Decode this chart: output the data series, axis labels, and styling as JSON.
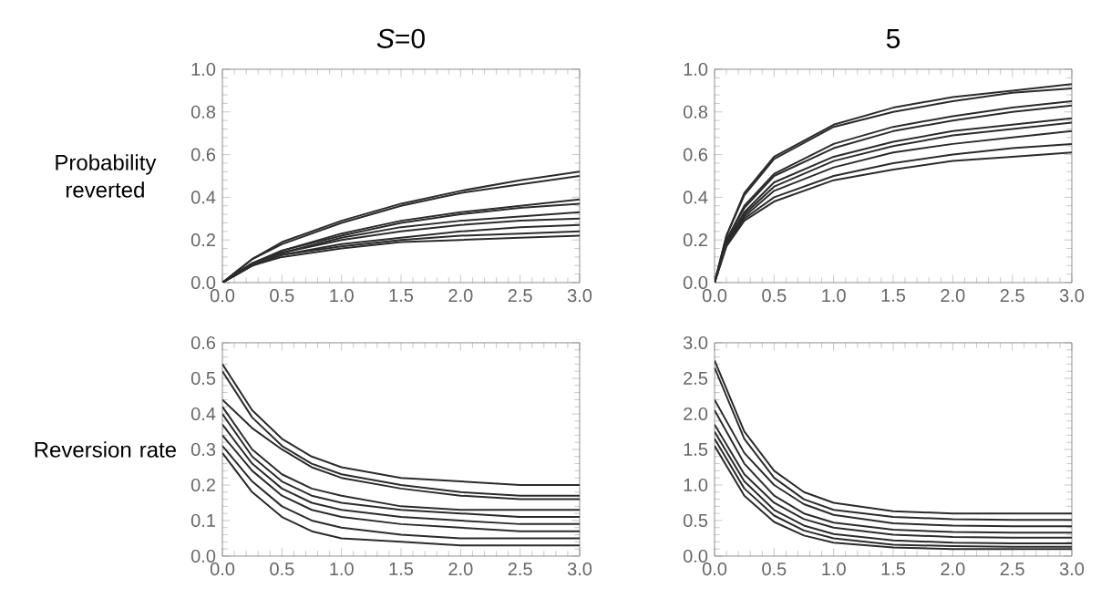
{
  "chart_data": [
    {
      "type": "line",
      "title": "*S*=0",
      "ylabel": "Probability reverted",
      "x": [
        0,
        0.25,
        0.5,
        1,
        1.5,
        2,
        2.5,
        3
      ],
      "xlim": [
        0,
        3
      ],
      "ylim": [
        0,
        1
      ],
      "xticks": [
        {
          "value": 0,
          "label": "0.0"
        },
        {
          "value": 0.5,
          "label": "0.5"
        },
        {
          "value": 1,
          "label": "1.0"
        },
        {
          "value": 1.5,
          "label": "1.5"
        },
        {
          "value": 2,
          "label": "2.0"
        },
        {
          "value": 2.5,
          "label": "2.5"
        },
        {
          "value": 3,
          "label": "3.0"
        }
      ],
      "yticks": [
        {
          "value": 0,
          "label": "0.0"
        },
        {
          "value": 0.2,
          "label": "0.2"
        },
        {
          "value": 0.4,
          "label": "0.4"
        },
        {
          "value": 0.6,
          "label": "0.6"
        },
        {
          "value": 0.8,
          "label": "0.8"
        },
        {
          "value": 1,
          "label": "1.0"
        }
      ],
      "series": [
        {
          "color": "#2b2b2b",
          "values": [
            0,
            0.11,
            0.19,
            0.29,
            0.37,
            0.43,
            0.48,
            0.52
          ]
        },
        {
          "color": "#2b2b2b",
          "values": [
            0,
            0.11,
            0.18,
            0.28,
            0.36,
            0.42,
            0.46,
            0.5
          ]
        },
        {
          "color": "#2b2b2b",
          "values": [
            0,
            0.09,
            0.15,
            0.23,
            0.29,
            0.33,
            0.36,
            0.39
          ]
        },
        {
          "color": "#2b2b2b",
          "values": [
            0,
            0.09,
            0.15,
            0.22,
            0.28,
            0.32,
            0.35,
            0.37
          ]
        },
        {
          "color": "#2b2b2b",
          "values": [
            0,
            0.09,
            0.14,
            0.21,
            0.26,
            0.29,
            0.31,
            0.33
          ]
        },
        {
          "color": "#2b2b2b",
          "values": [
            0,
            0.09,
            0.14,
            0.2,
            0.24,
            0.27,
            0.29,
            0.3
          ]
        },
        {
          "color": "#2b2b2b",
          "values": [
            0,
            0.08,
            0.13,
            0.18,
            0.21,
            0.24,
            0.26,
            0.27
          ]
        },
        {
          "color": "#2b2b2b",
          "values": [
            0,
            0.08,
            0.13,
            0.17,
            0.2,
            0.22,
            0.23,
            0.24
          ]
        },
        {
          "color": "#2b2b2b",
          "values": [
            0,
            0.08,
            0.12,
            0.16,
            0.19,
            0.2,
            0.21,
            0.22
          ]
        }
      ]
    },
    {
      "type": "line",
      "title": "5",
      "x": [
        0,
        0.1,
        0.25,
        0.5,
        1,
        1.5,
        2,
        2.5,
        3
      ],
      "xlim": [
        0,
        3
      ],
      "ylim": [
        0,
        1
      ],
      "xticks": [
        {
          "value": 0,
          "label": "0.0"
        },
        {
          "value": 0.5,
          "label": "0.5"
        },
        {
          "value": 1,
          "label": "1.0"
        },
        {
          "value": 1.5,
          "label": "1.5"
        },
        {
          "value": 2,
          "label": "2.0"
        },
        {
          "value": 2.5,
          "label": "2.5"
        },
        {
          "value": 3,
          "label": "3.0"
        }
      ],
      "yticks": [
        {
          "value": 0,
          "label": "0.0"
        },
        {
          "value": 0.2,
          "label": "0.2"
        },
        {
          "value": 0.4,
          "label": "0.4"
        },
        {
          "value": 0.6,
          "label": "0.6"
        },
        {
          "value": 0.8,
          "label": "0.8"
        },
        {
          "value": 1,
          "label": "1.0"
        }
      ],
      "series": [
        {
          "color": "#2b2b2b",
          "values": [
            0,
            0.22,
            0.42,
            0.59,
            0.74,
            0.82,
            0.87,
            0.9,
            0.93
          ]
        },
        {
          "color": "#2b2b2b",
          "values": [
            0,
            0.22,
            0.41,
            0.58,
            0.73,
            0.8,
            0.85,
            0.89,
            0.91
          ]
        },
        {
          "color": "#2b2b2b",
          "values": [
            0,
            0.2,
            0.36,
            0.51,
            0.65,
            0.73,
            0.78,
            0.82,
            0.85
          ]
        },
        {
          "color": "#2b2b2b",
          "values": [
            0,
            0.2,
            0.35,
            0.5,
            0.63,
            0.71,
            0.76,
            0.8,
            0.83
          ]
        },
        {
          "color": "#2b2b2b",
          "values": [
            0,
            0.19,
            0.33,
            0.47,
            0.59,
            0.66,
            0.71,
            0.74,
            0.77
          ]
        },
        {
          "color": "#2b2b2b",
          "values": [
            0,
            0.19,
            0.32,
            0.45,
            0.57,
            0.64,
            0.69,
            0.72,
            0.75
          ]
        },
        {
          "color": "#2b2b2b",
          "values": [
            0,
            0.18,
            0.31,
            0.43,
            0.54,
            0.61,
            0.65,
            0.68,
            0.71
          ]
        },
        {
          "color": "#2b2b2b",
          "values": [
            0,
            0.18,
            0.3,
            0.4,
            0.5,
            0.56,
            0.6,
            0.63,
            0.65
          ]
        },
        {
          "color": "#2b2b2b",
          "values": [
            0,
            0.17,
            0.29,
            0.38,
            0.48,
            0.53,
            0.57,
            0.59,
            0.61
          ]
        }
      ]
    },
    {
      "type": "line",
      "ylabel": "Reversion rate",
      "x": [
        0,
        0.25,
        0.5,
        0.75,
        1,
        1.5,
        2,
        2.5,
        3
      ],
      "xlim": [
        0,
        3
      ],
      "ylim": [
        0,
        0.6
      ],
      "xticks": [
        {
          "value": 0,
          "label": "0.0"
        },
        {
          "value": 0.5,
          "label": "0.5"
        },
        {
          "value": 1,
          "label": "1.0"
        },
        {
          "value": 1.5,
          "label": "1.5"
        },
        {
          "value": 2,
          "label": "2.0"
        },
        {
          "value": 2.5,
          "label": "2.5"
        },
        {
          "value": 3,
          "label": "3.0"
        }
      ],
      "yticks": [
        {
          "value": 0,
          "label": "0.0"
        },
        {
          "value": 0.1,
          "label": "0.1"
        },
        {
          "value": 0.2,
          "label": "0.2"
        },
        {
          "value": 0.3,
          "label": "0.3"
        },
        {
          "value": 0.4,
          "label": "0.4"
        },
        {
          "value": 0.5,
          "label": "0.5"
        },
        {
          "value": 0.6,
          "label": "0.6"
        }
      ],
      "series": [
        {
          "color": "#2b2b2b",
          "values": [
            0.54,
            0.41,
            0.33,
            0.28,
            0.25,
            0.22,
            0.21,
            0.2,
            0.2
          ]
        },
        {
          "color": "#2b2b2b",
          "values": [
            0.52,
            0.39,
            0.31,
            0.26,
            0.23,
            0.2,
            0.18,
            0.17,
            0.17
          ]
        },
        {
          "color": "#2b2b2b",
          "values": [
            0.44,
            0.36,
            0.3,
            0.25,
            0.22,
            0.19,
            0.17,
            0.16,
            0.16
          ]
        },
        {
          "color": "#2b2b2b",
          "values": [
            0.42,
            0.3,
            0.23,
            0.19,
            0.17,
            0.14,
            0.13,
            0.13,
            0.13
          ]
        },
        {
          "color": "#2b2b2b",
          "values": [
            0.4,
            0.28,
            0.21,
            0.17,
            0.15,
            0.13,
            0.12,
            0.11,
            0.11
          ]
        },
        {
          "color": "#2b2b2b",
          "values": [
            0.37,
            0.26,
            0.19,
            0.15,
            0.13,
            0.11,
            0.1,
            0.09,
            0.09
          ]
        },
        {
          "color": "#2b2b2b",
          "values": [
            0.34,
            0.24,
            0.17,
            0.13,
            0.11,
            0.09,
            0.08,
            0.07,
            0.07
          ]
        },
        {
          "color": "#2b2b2b",
          "values": [
            0.31,
            0.21,
            0.14,
            0.1,
            0.08,
            0.06,
            0.05,
            0.05,
            0.05
          ]
        },
        {
          "color": "#2b2b2b",
          "values": [
            0.29,
            0.18,
            0.11,
            0.07,
            0.05,
            0.04,
            0.03,
            0.03,
            0.03
          ]
        }
      ]
    },
    {
      "type": "line",
      "x": [
        0,
        0.25,
        0.5,
        0.75,
        1,
        1.5,
        2,
        2.5,
        3
      ],
      "xlim": [
        0,
        3
      ],
      "ylim": [
        0,
        3
      ],
      "xticks": [
        {
          "value": 0,
          "label": "0.0"
        },
        {
          "value": 0.5,
          "label": "0.5"
        },
        {
          "value": 1,
          "label": "1.0"
        },
        {
          "value": 1.5,
          "label": "1.5"
        },
        {
          "value": 2,
          "label": "2.0"
        },
        {
          "value": 2.5,
          "label": "2.5"
        },
        {
          "value": 3,
          "label": "3.0"
        }
      ],
      "yticks": [
        {
          "value": 0,
          "label": "0.0"
        },
        {
          "value": 0.5,
          "label": "0.5"
        },
        {
          "value": 1,
          "label": "1.0"
        },
        {
          "value": 1.5,
          "label": "1.5"
        },
        {
          "value": 2,
          "label": "2.0"
        },
        {
          "value": 2.5,
          "label": "2.5"
        },
        {
          "value": 3,
          "label": "3.0"
        }
      ],
      "series": [
        {
          "color": "#2b2b2b",
          "values": [
            2.75,
            1.75,
            1.2,
            0.9,
            0.75,
            0.63,
            0.6,
            0.6,
            0.6
          ]
        },
        {
          "color": "#2b2b2b",
          "values": [
            2.65,
            1.65,
            1.1,
            0.8,
            0.65,
            0.55,
            0.52,
            0.51,
            0.51
          ]
        },
        {
          "color": "#2b2b2b",
          "values": [
            2.2,
            1.45,
            1.0,
            0.73,
            0.58,
            0.46,
            0.43,
            0.42,
            0.42
          ]
        },
        {
          "color": "#2b2b2b",
          "values": [
            2.05,
            1.3,
            0.85,
            0.6,
            0.47,
            0.37,
            0.34,
            0.33,
            0.33
          ]
        },
        {
          "color": "#2b2b2b",
          "values": [
            1.85,
            1.15,
            0.75,
            0.52,
            0.4,
            0.3,
            0.27,
            0.26,
            0.26
          ]
        },
        {
          "color": "#2b2b2b",
          "values": [
            1.75,
            1.05,
            0.65,
            0.43,
            0.31,
            0.22,
            0.19,
            0.18,
            0.18
          ]
        },
        {
          "color": "#2b2b2b",
          "values": [
            1.65,
            0.95,
            0.57,
            0.36,
            0.25,
            0.16,
            0.14,
            0.13,
            0.13
          ]
        },
        {
          "color": "#2b2b2b",
          "values": [
            1.55,
            0.85,
            0.48,
            0.29,
            0.19,
            0.12,
            0.1,
            0.1,
            0.1
          ]
        }
      ]
    }
  ]
}
